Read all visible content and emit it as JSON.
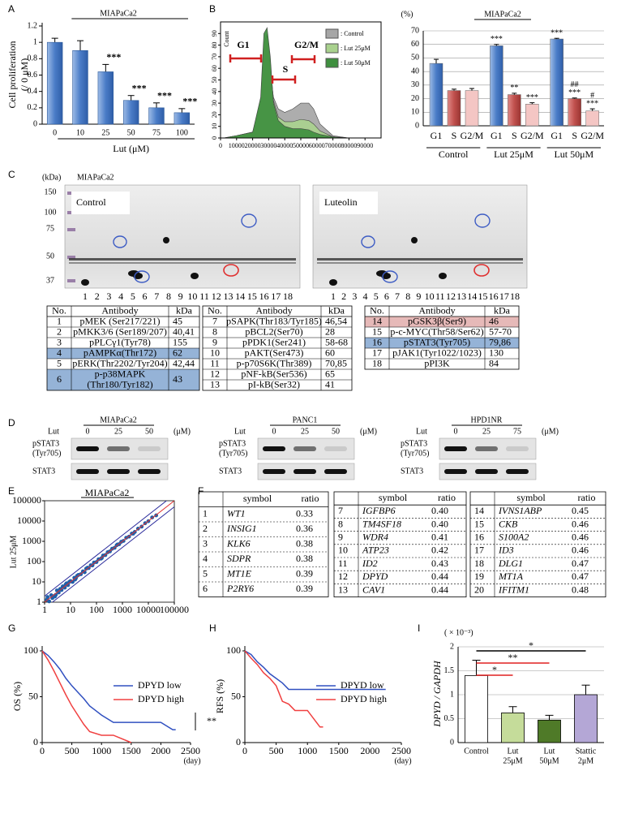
{
  "panel_labels": [
    "A",
    "B",
    "C",
    "D",
    "E",
    "F",
    "G",
    "H",
    "I"
  ],
  "chart_data": [
    {
      "type": "bar",
      "title": "MIAPaCa2",
      "ylabel": [
        "Cell proliferation",
        "(/ 0 μM)"
      ],
      "xlabel": "Lut  (μM)",
      "categories": [
        "0",
        "10",
        "25",
        "50",
        "75",
        "100"
      ],
      "values": [
        1,
        0.9,
        0.64,
        0.29,
        0.2,
        0.14
      ],
      "errors": [
        0.05,
        0.12,
        0.09,
        0.06,
        0.06,
        0.05
      ],
      "significance": [
        null,
        null,
        "***",
        "***",
        "***",
        "***"
      ],
      "color": "#4a7cc7",
      "ylim": [
        0,
        1.2
      ],
      "yticks": [
        0,
        0.2,
        0.4,
        0.6,
        0.8,
        1,
        1.2
      ]
    },
    {
      "type": "area",
      "ylabel": "Count",
      "x": [
        2000,
        10000,
        20000,
        25000,
        27000,
        29000,
        31000,
        33000,
        36000,
        40000,
        45000,
        50000,
        55000,
        58000,
        62000,
        70000,
        80000
      ],
      "series": [
        {
          "name": ": Control",
          "color": "#a6a6a6",
          "values": [
            0,
            2,
            5,
            28,
            70,
            80,
            55,
            35,
            25,
            22,
            25,
            30,
            30,
            25,
            12,
            2,
            0
          ]
        },
        {
          "name": ": Lut 25μM",
          "color": "#a9d18e",
          "values": [
            0,
            2,
            5,
            32,
            80,
            90,
            65,
            32,
            18,
            14,
            14,
            16,
            15,
            12,
            6,
            1,
            0
          ]
        },
        {
          "name": ": Lut 50μM",
          "color": "#3f8f3f",
          "values": [
            0,
            2,
            5,
            35,
            90,
            95,
            70,
            30,
            15,
            10,
            8,
            8,
            7,
            5,
            3,
            1,
            0
          ]
        }
      ],
      "xlim": [
        0,
        100000
      ],
      "ylim": [
        0,
        100
      ],
      "xticks": [
        0,
        10000,
        20000,
        30000,
        40000,
        50000,
        60000,
        70000,
        80000,
        90000
      ],
      "yticks": [
        0,
        10,
        20,
        30,
        40,
        50,
        60,
        70,
        80,
        90
      ],
      "annotations": [
        "G1",
        "S",
        "G2/M"
      ]
    },
    {
      "type": "grouped_bar",
      "title": "MIAPaCa2",
      "ylabel": "(%)",
      "groups": [
        "Control",
        "Lut 25μM",
        "Lut 50μM"
      ],
      "series": [
        {
          "name": "G1",
          "color": "#4a7cc7",
          "values": [
            46,
            59,
            64
          ],
          "errors": [
            3,
            1,
            0.5
          ],
          "significance": [
            null,
            "***",
            "***"
          ]
        },
        {
          "name": "S",
          "color": "#c0504d",
          "values": [
            26,
            23,
            20
          ],
          "errors": [
            1,
            1,
            0.5
          ],
          "significance": [
            null,
            "**",
            "***"
          ],
          "significance_vs_25": [
            null,
            null,
            "##"
          ]
        },
        {
          "name": "G2/M",
          "color": "#f4c6c4",
          "values": [
            26,
            16,
            11
          ],
          "errors": [
            1.5,
            1,
            1.5
          ],
          "significance": [
            null,
            "***",
            "***"
          ],
          "significance_vs_25": [
            null,
            null,
            "#"
          ]
        }
      ],
      "ylim": [
        0,
        70
      ],
      "yticks": [
        0,
        10,
        20,
        30,
        40,
        50,
        60,
        70
      ],
      "grid": true
    },
    {
      "type": "scatter",
      "title": "MIAPaCa2",
      "ylabel": "Lut  25μM",
      "log": true,
      "color": "#1f5fa8",
      "x": [
        1.2,
        1.5,
        1.8,
        2,
        2.3,
        2.7,
        3,
        3.5,
        4,
        4.5,
        5,
        6,
        7,
        8,
        9,
        10,
        12,
        14,
        16,
        18,
        20,
        25,
        30,
        35,
        40,
        50,
        60,
        70,
        80,
        100,
        120,
        150,
        180,
        220,
        270,
        330,
        400,
        500,
        600,
        750,
        900,
        1100,
        1400,
        1800,
        2300,
        3000,
        4000,
        5500,
        7500,
        10000,
        14000,
        20000,
        1.3,
        2.5,
        6.5,
        15,
        45,
        160,
        650,
        2600
      ],
      "values": [
        1.3,
        1.1,
        2.2,
        1.6,
        2,
        2.3,
        3.8,
        3,
        4.5,
        4,
        6,
        5.2,
        8.5,
        7,
        10,
        11,
        10,
        16,
        15,
        20,
        22,
        24,
        33,
        30,
        45,
        48,
        66,
        65,
        90,
        95,
        130,
        140,
        200,
        210,
        290,
        320,
        430,
        480,
        640,
        720,
        950,
        1050,
        1500,
        1700,
        2400,
        2900,
        4200,
        5300,
        7800,
        9800,
        15000,
        19000,
        1.8,
        1.9,
        7.5,
        13,
        50,
        150,
        700,
        2400
      ],
      "fold_lines": [
        {
          "factor": 2,
          "color": "#2c2c9c"
        },
        {
          "factor": 1,
          "color": "#e03030"
        },
        {
          "factor": 0.5,
          "color": "#2c2c9c"
        }
      ],
      "xlim": [
        1,
        100000
      ],
      "ylim": [
        1,
        100000
      ],
      "xticks": [
        1,
        10,
        100,
        1000,
        10000,
        100000
      ],
      "yticks": [
        1,
        10,
        100,
        1000,
        10000,
        100000
      ]
    },
    {
      "type": "line",
      "ylabel": "OS (%)",
      "xlabel": "(day)",
      "annotation": "**",
      "series": [
        {
          "name": "DPYD low",
          "color": "#3050c0",
          "x": [
            0,
            100,
            200,
            300,
            400,
            500,
            600,
            700,
            800,
            900,
            1000,
            1200,
            1500,
            2000,
            2200,
            2250
          ],
          "values": [
            100,
            95,
            88,
            80,
            70,
            62,
            55,
            48,
            40,
            35,
            30,
            22,
            22,
            22,
            14,
            14
          ]
        },
        {
          "name": "DPYD high",
          "color": "#f04040",
          "x": [
            0,
            100,
            200,
            300,
            400,
            500,
            600,
            700,
            800,
            1000,
            1200,
            1500
          ],
          "values": [
            100,
            90,
            78,
            65,
            52,
            40,
            30,
            20,
            12,
            8,
            8,
            0
          ]
        }
      ],
      "xlim": [
        0,
        2500
      ],
      "ylim": [
        0,
        100
      ],
      "xticks": [
        0,
        500,
        1000,
        1500,
        2000,
        2500
      ],
      "yticks": [
        0,
        50,
        100
      ]
    },
    {
      "type": "line",
      "ylabel": "RFS (%)",
      "xlabel": "(day)",
      "series": [
        {
          "name": "DPYD low",
          "color": "#3050c0",
          "x": [
            0,
            100,
            200,
            300,
            400,
            500,
            600,
            700,
            800,
            1000,
            1500,
            2000,
            2250
          ],
          "values": [
            100,
            96,
            88,
            82,
            75,
            70,
            65,
            58,
            58,
            58,
            58,
            58,
            58
          ]
        },
        {
          "name": "DPYD high",
          "color": "#f04040",
          "x": [
            0,
            100,
            200,
            300,
            400,
            500,
            600,
            700,
            800,
            1000,
            1200,
            1250
          ],
          "values": [
            100,
            92,
            85,
            76,
            70,
            62,
            45,
            42,
            35,
            35,
            17,
            17
          ]
        }
      ],
      "xlim": [
        0,
        2500
      ],
      "ylim": [
        0,
        100
      ],
      "xticks": [
        0,
        500,
        1000,
        1500,
        2000,
        2500
      ],
      "yticks": [
        0,
        50,
        100
      ]
    },
    {
      "type": "bar",
      "ylabel": "DPYD / GAPDH",
      "unit_label": "( × 10⁻³)",
      "categories": [
        [
          "Control"
        ],
        [
          "Lut",
          "25μM"
        ],
        [
          "Lut",
          "50μM"
        ],
        [
          "Stattic",
          "2μM"
        ]
      ],
      "values": [
        1.4,
        0.62,
        0.47,
        1.0
      ],
      "errors": [
        0.32,
        0.13,
        0.1,
        0.2
      ],
      "colors": [
        "#ffffff",
        "#c5dc9a",
        "#4f7a28",
        "#b4a7d6"
      ],
      "significance_vs_control": [
        null,
        "*",
        "**",
        "*"
      ],
      "significance_line_colors": [
        null,
        "#e02020",
        "#e02020",
        "#000000"
      ],
      "ylim": [
        0,
        2
      ],
      "yticks": [
        0,
        0.5,
        1,
        1.5,
        2
      ],
      "grid": true
    }
  ],
  "blots_c": {
    "kda_label": "(kDa)",
    "title": "MIAPaCa2",
    "panels": [
      "Control",
      "Luteolin"
    ],
    "markers": [
      "150",
      "100",
      "75",
      "50",
      "37"
    ],
    "lanes": [
      "1",
      "2",
      "3",
      "4",
      "5",
      "6",
      "7",
      "8",
      "9",
      "10",
      "11",
      "12",
      "13",
      "14",
      "15",
      "16",
      "17",
      "18"
    ]
  },
  "tables_c": [
    {
      "header": [
        "No.",
        "Antibody",
        "kDa"
      ],
      "rows": [
        [
          "1",
          "pMEK (Ser217/221)",
          "45"
        ],
        [
          "2",
          "pMKK3/6 (Ser189/207)",
          "40,41"
        ],
        [
          "3",
          "pPLCγ1(Tyr78)",
          "155"
        ],
        [
          "4",
          "pAMPKα(Thr172)",
          "62"
        ],
        [
          "5",
          "pERK(Thr2202/Tyr204)",
          "42,44"
        ],
        [
          "6",
          [
            "p-p38MAPK",
            "(Thr180/Tyr182)"
          ],
          "43"
        ]
      ],
      "row_colors": [
        null,
        null,
        null,
        "#95b3d7",
        null,
        "#95b3d7"
      ]
    },
    {
      "header": [
        "No.",
        "Antibody",
        "kDa"
      ],
      "rows": [
        [
          "7",
          "pSAPK(Thr183/Tyr185)",
          "46,54"
        ],
        [
          "8",
          "pBCL2(Ser70)",
          "28"
        ],
        [
          "9",
          "pPDK1(Ser241)",
          "58-68"
        ],
        [
          "10",
          "pAKT(Ser473)",
          "60"
        ],
        [
          "11",
          "p-p70S6K(Thr389)",
          "70,85"
        ],
        [
          "12",
          "pNF-kB(Ser536)",
          "65"
        ],
        [
          "13",
          "pI-kB(Ser32)",
          "41"
        ]
      ]
    },
    {
      "header": [
        "No.",
        "Antibody",
        "kDa"
      ],
      "rows": [
        [
          "14",
          "pGSK3β(Ser9)",
          "46"
        ],
        [
          "15",
          "p-c-MYC(Thr58/Ser62)",
          "57-70"
        ],
        [
          "16",
          "pSTAT3(Tyr705)",
          "79,86"
        ],
        [
          "17",
          "pJAK1(Tyr1022/1023)",
          "130"
        ],
        [
          "18",
          "pPI3K",
          "84"
        ]
      ],
      "row_colors": [
        "#e6b9b8",
        null,
        "#95b3d7",
        null,
        null
      ]
    }
  ],
  "blots_d": [
    {
      "title": "MIAPaCa2",
      "treatment": "Lut",
      "doses": [
        "0",
        "25",
        "50"
      ],
      "unit": "(μM)",
      "rows": [
        [
          "pSTAT3",
          "(Tyr705)"
        ],
        [
          "STAT3"
        ]
      ]
    },
    {
      "title": "PANC1",
      "treatment": "Lut",
      "doses": [
        "0",
        "25",
        "50"
      ],
      "unit": "(μM)",
      "rows": [
        [
          "pSTAT3",
          "(Tyr705)"
        ],
        [
          "STAT3"
        ]
      ]
    },
    {
      "title": "HPD1NR",
      "treatment": "Lut",
      "doses": [
        "0",
        "25",
        "75"
      ],
      "unit": "(μM)",
      "rows": [
        [
          "pSTAT3",
          "(Tyr705)"
        ],
        [
          "STAT3"
        ]
      ]
    }
  ],
  "tables_f": [
    {
      "header": [
        "symbol",
        "ratio"
      ],
      "rows": [
        [
          "1",
          "WT1",
          "0.33"
        ],
        [
          "2",
          "INSIG1",
          "0.36"
        ],
        [
          "3",
          "KLK6",
          "0.38"
        ],
        [
          "4",
          "SDPR",
          "0.38"
        ],
        [
          "5",
          "MT1E",
          "0.39"
        ],
        [
          "6",
          "P2RY6",
          "0.39"
        ]
      ]
    },
    {
      "header": [
        "symbol",
        "ratio"
      ],
      "rows": [
        [
          "7",
          "IGFBP6",
          "0.40"
        ],
        [
          "8",
          "TM4SF18",
          "0.40"
        ],
        [
          "9",
          "WDR4",
          "0.41"
        ],
        [
          "10",
          "ATP23",
          "0.42"
        ],
        [
          "11",
          "ID2",
          "0.43"
        ],
        [
          "12",
          "DPYD",
          "0.44"
        ],
        [
          "13",
          "CAV1",
          "0.44"
        ]
      ]
    },
    {
      "header": [
        "symbol",
        "ratio"
      ],
      "rows": [
        [
          "14",
          "IVNS1ABP",
          "0.45"
        ],
        [
          "15",
          "CKB",
          "0.46"
        ],
        [
          "16",
          "S100A2",
          "0.46"
        ],
        [
          "17",
          "ID3",
          "0.46"
        ],
        [
          "18",
          "DLG1",
          "0.47"
        ],
        [
          "19",
          "MT1A",
          "0.47"
        ],
        [
          "20",
          "IFITM1",
          "0.48"
        ]
      ]
    }
  ]
}
